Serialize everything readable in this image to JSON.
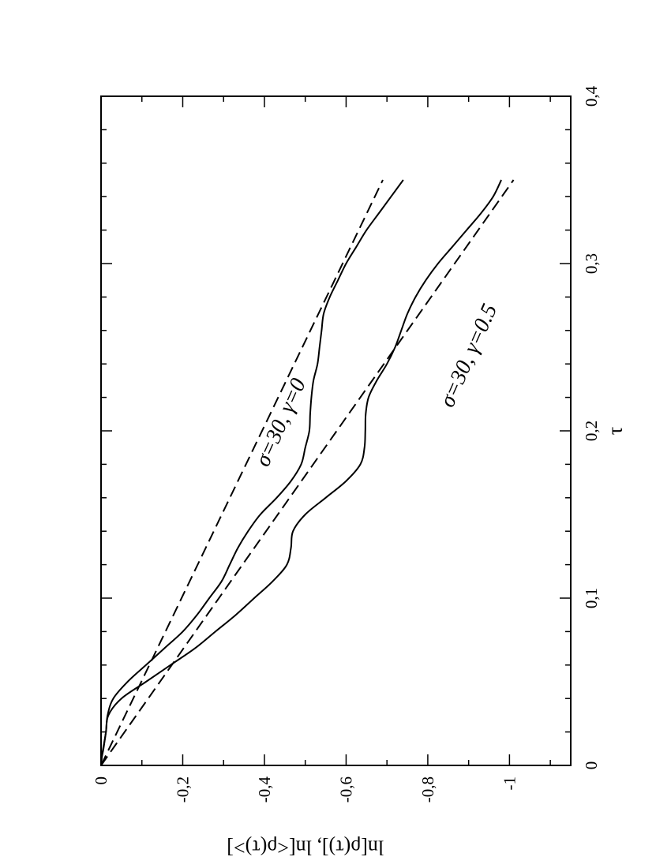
{
  "chart_data": {
    "type": "line",
    "orientation": "rotated-90-clockwise",
    "xlabel": "τ",
    "ylabel": "ln[ρ(τ)], ln[<ρ(τ)>]",
    "xlim": [
      0,
      0.4
    ],
    "ylim": [
      -1.15,
      0
    ],
    "x_ticks": [
      {
        "value": 0,
        "label": "0"
      },
      {
        "value": 0.1,
        "label": "0,1"
      },
      {
        "value": 0.2,
        "label": "0,2"
      },
      {
        "value": 0.3,
        "label": "0,3"
      },
      {
        "value": 0.4,
        "label": "0,4"
      }
    ],
    "y_ticks": [
      {
        "value": 0,
        "label": "0"
      },
      {
        "value": -0.2,
        "label": "-0,2"
      },
      {
        "value": -0.4,
        "label": "-0,4"
      },
      {
        "value": -0.6,
        "label": "-0,6"
      },
      {
        "value": -0.8,
        "label": "-0,8"
      },
      {
        "value": -1.0,
        "label": "-1"
      }
    ],
    "grid": false,
    "series": [
      {
        "style": "solid",
        "x": [
          0,
          0.005,
          0.01,
          0.02,
          0.03,
          0.04,
          0.05,
          0.06,
          0.07,
          0.08,
          0.09,
          0.1,
          0.11,
          0.12,
          0.13,
          0.14,
          0.15,
          0.16,
          0.17,
          0.18,
          0.19,
          0.2,
          0.21,
          0.22,
          0.23,
          0.24,
          0.25,
          0.26,
          0.27,
          0.28,
          0.29,
          0.3,
          0.31,
          0.32,
          0.33,
          0.34,
          0.35
        ],
        "y": [
          0,
          -0.002,
          -0.005,
          -0.012,
          -0.016,
          -0.03,
          -0.065,
          -0.11,
          -0.155,
          -0.2,
          -0.235,
          -0.265,
          -0.295,
          -0.315,
          -0.335,
          -0.36,
          -0.39,
          -0.43,
          -0.465,
          -0.49,
          -0.5,
          -0.51,
          -0.512,
          -0.515,
          -0.52,
          -0.53,
          -0.535,
          -0.54,
          -0.545,
          -0.56,
          -0.58,
          -0.6,
          -0.625,
          -0.65,
          -0.68,
          -0.71,
          -0.74
        ]
      },
      {
        "style": "solid",
        "x": [
          0,
          0.005,
          0.01,
          0.02,
          0.03,
          0.04,
          0.05,
          0.06,
          0.07,
          0.08,
          0.09,
          0.1,
          0.11,
          0.12,
          0.13,
          0.14,
          0.15,
          0.16,
          0.17,
          0.18,
          0.19,
          0.2,
          0.21,
          0.22,
          0.23,
          0.24,
          0.25,
          0.26,
          0.27,
          0.28,
          0.29,
          0.3,
          0.31,
          0.32,
          0.33,
          0.34,
          0.35
        ],
        "y": [
          0,
          -0.002,
          -0.006,
          -0.012,
          -0.018,
          -0.05,
          -0.11,
          -0.17,
          -0.23,
          -0.28,
          -0.33,
          -0.375,
          -0.42,
          -0.455,
          -0.465,
          -0.47,
          -0.5,
          -0.55,
          -0.6,
          -0.635,
          -0.645,
          -0.647,
          -0.648,
          -0.655,
          -0.675,
          -0.7,
          -0.72,
          -0.735,
          -0.75,
          -0.77,
          -0.795,
          -0.825,
          -0.86,
          -0.895,
          -0.93,
          -0.96,
          -0.98
        ]
      },
      {
        "style": "dashed",
        "x": [
          0,
          0.35
        ],
        "y": [
          0,
          -0.69
        ]
      },
      {
        "style": "dashed",
        "x": [
          0,
          0.35
        ],
        "y": [
          0,
          -1.01
        ]
      }
    ],
    "annotations": [
      {
        "text": "σ=30, γ=0",
        "x": 0.205,
        "y": -0.44
      },
      {
        "text": "σ=30, γ=0.5",
        "x": 0.245,
        "y": -0.9
      }
    ]
  }
}
